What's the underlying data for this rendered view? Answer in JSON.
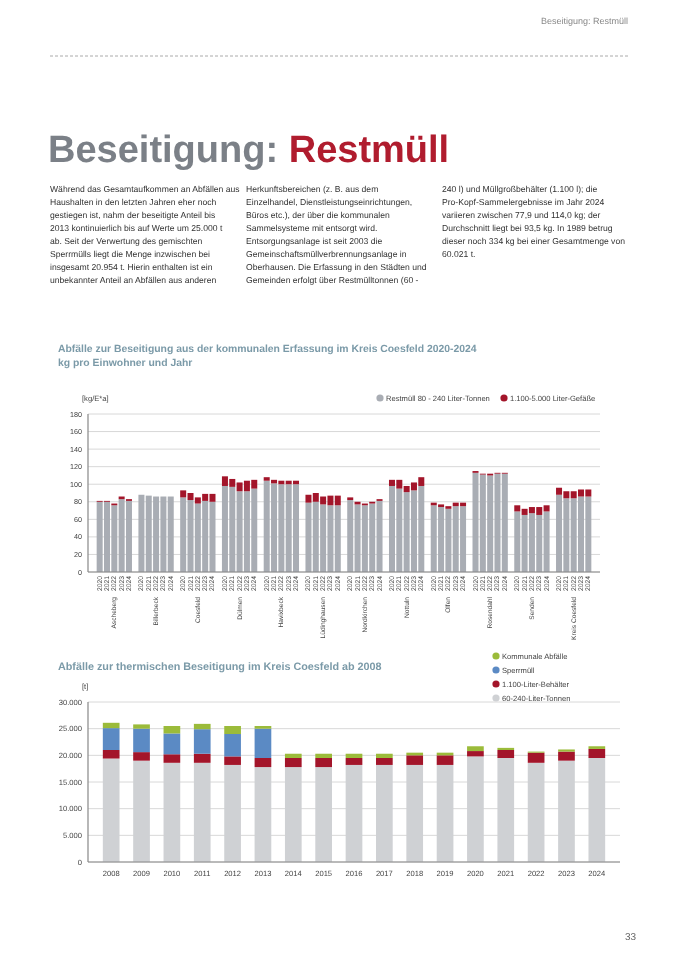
{
  "chart_data": [
    {
      "type": "other",
      "title": "Beseitigung: Restmüll",
      "annotations": [
        "Beseitigung: Restmüll",
        "Während das Gesamtaufkommen an Abfällen aus Haushalten in den letzten Jahren eher noch gestiegen ist, nahm der beseitigte Anteil bis 2013 kontinuierlich bis auf Werte um 25.000 t ab. Seit der Verwertung des gemischten Sperrmülls liegt die Menge inzwischen bei insgesamt 20.954 t. Hierin enthalten ist ein unbekannter Anteil an Abfällen aus anderen Herkunftsbereichen (z. B. aus dem Einzelhandel, Dienstleistungseinrichtungen, Büros etc.), der über die kommunalen Sammelsysteme mit entsorgt wird. Entsorgungsanlage ist seit 2003 die Gemeinschaftsmüllverbrennungsanlage in Oberhausen. Die Erfassung in den Städten und Gemeinden erfolgt über Restmülltonnen (60 - 240 l) und Müllgroßbehälter (1.100 l); die Pro-Kopf-Sammelergebnisse im Jahr 2024 variieren zwischen 77,9 und 114,0 kg; der Durchschnitt liegt bei 93,5 kg. In 1989 betrug dieser noch 334 kg bei einer Gesamtmenge von 60.021 t.",
        "33"
      ]
    },
    {
      "type": "bar",
      "stacked": true,
      "title": "Abfälle zur Beseitigung aus der kommunalen Erfassung im Kreis Coesfeld 2020-2024",
      "subtitle": "kg pro Einwohner und Jahr",
      "ylabel": "[kg/E*a]",
      "categories": [
        "2020",
        "2021",
        "2022",
        "2023",
        "2024",
        "2020",
        "2021",
        "2022",
        "2023",
        "2024",
        "2020",
        "2021",
        "2022",
        "2023",
        "2024",
        "2020",
        "2021",
        "2022",
        "2023",
        "2024",
        "2020",
        "2021",
        "2022",
        "2023",
        "2024",
        "2020",
        "2021",
        "2022",
        "2023",
        "2024",
        "2020",
        "2021",
        "2022",
        "2023",
        "2024",
        "2020",
        "2021",
        "2022",
        "2023",
        "2024",
        "2020",
        "2021",
        "2022",
        "2023",
        "2024",
        "2020",
        "2021",
        "2022",
        "2023",
        "2024",
        "2020",
        "2021",
        "2022",
        "2023",
        "2024",
        "2020",
        "2021",
        "2022",
        "2023",
        "2024"
      ],
      "annotations": [
        "Ascheberg",
        "Billerbeck",
        "Coesfeld",
        "Dülmen",
        "Havixbeck",
        "Lüdinghausen",
        "Nordkirchen",
        "Nottuln",
        "Olfen",
        "Rosendahl",
        "Senden",
        "Kreis Coesfeld"
      ],
      "series": [
        {
          "name": "Restmüll 80 - 240 Liter-Tonnen",
          "color": "#a9adb4",
          "values": [
            80,
            80,
            76,
            83,
            81,
            88,
            87,
            86,
            86,
            86,
            85,
            82,
            78,
            81,
            80,
            98,
            97,
            92,
            92,
            95,
            104,
            101,
            100,
            100,
            100,
            79,
            80,
            77,
            76,
            76,
            82,
            77,
            76,
            78,
            81,
            98,
            95,
            91,
            93,
            98,
            76,
            74,
            72,
            75,
            75,
            113,
            111,
            110,
            112,
            112,
            69,
            65,
            67,
            65,
            69,
            88,
            84,
            84,
            86,
            86
          ]
        },
        {
          "name": "1.100-5.000 Liter-Gefäße",
          "color": "#a3152a",
          "values": [
            1,
            1,
            2,
            3,
            2,
            0,
            0,
            0,
            0,
            0,
            8,
            8,
            7,
            8,
            9,
            11,
            9,
            10,
            12,
            10,
            4,
            4,
            4,
            4,
            4,
            9,
            10,
            9,
            11,
            11,
            3,
            3,
            2,
            2,
            2,
            7,
            10,
            7,
            9,
            10,
            3,
            3,
            3,
            4,
            4,
            2,
            1,
            2,
            1,
            1,
            7,
            7,
            7,
            9,
            7,
            8,
            8,
            8,
            8,
            8
          ]
        }
      ],
      "ylim": [
        0,
        180
      ],
      "yticks": [
        0,
        20,
        40,
        60,
        80,
        100,
        120,
        140,
        160,
        180
      ],
      "grid": "y",
      "legend": "top"
    },
    {
      "type": "bar",
      "stacked": true,
      "title": "Abfälle zur thermischen Beseitigung im Kreis Coesfeld ab 2008",
      "ylabel": "[t]",
      "categories": [
        "2008",
        "2009",
        "2010",
        "2011",
        "2012",
        "2013",
        "2014",
        "2015",
        "2016",
        "2017",
        "2018",
        "2019",
        "2020",
        "2021",
        "2022",
        "2023",
        "2024"
      ],
      "series": [
        {
          "name": "60-240-Liter-Tonnen",
          "color": "#cfd1d4",
          "values": [
            19400,
            19000,
            18600,
            18600,
            18200,
            17800,
            17800,
            17800,
            18200,
            18200,
            18200,
            18200,
            19800,
            19500,
            18600,
            19000,
            19500
          ]
        },
        {
          "name": "1.100-Liter-Behälter",
          "color": "#a3152a",
          "values": [
            1600,
            1600,
            1600,
            1700,
            1600,
            1700,
            1700,
            1700,
            1300,
            1300,
            1800,
            1800,
            1000,
            1500,
            1900,
            1700,
            1700
          ]
        },
        {
          "name": "Sperrmüll",
          "color": "#5b8ac4",
          "values": [
            4100,
            4400,
            3900,
            4600,
            4200,
            5500,
            0,
            0,
            0,
            0,
            0,
            0,
            0,
            0,
            0,
            0,
            0
          ]
        },
        {
          "name": "Kommunale Abfälle",
          "color": "#9bbb3a",
          "values": [
            1000,
            800,
            1400,
            1000,
            1500,
            500,
            800,
            800,
            800,
            800,
            500,
            500,
            900,
            400,
            200,
            400,
            500
          ]
        }
      ],
      "ylim": [
        0,
        30000
      ],
      "yticks": [
        0,
        {
          "value": 5000,
          "label": "5.000"
        },
        {
          "value": 10000,
          "label": "10.000"
        },
        {
          "value": 15000,
          "label": "15.000"
        },
        {
          "value": 20000,
          "label": "20.000"
        },
        {
          "value": 25000,
          "label": "25.000"
        },
        {
          "value": 30000,
          "label": "30.000"
        }
      ],
      "grid": "y",
      "legend": "top right"
    }
  ]
}
